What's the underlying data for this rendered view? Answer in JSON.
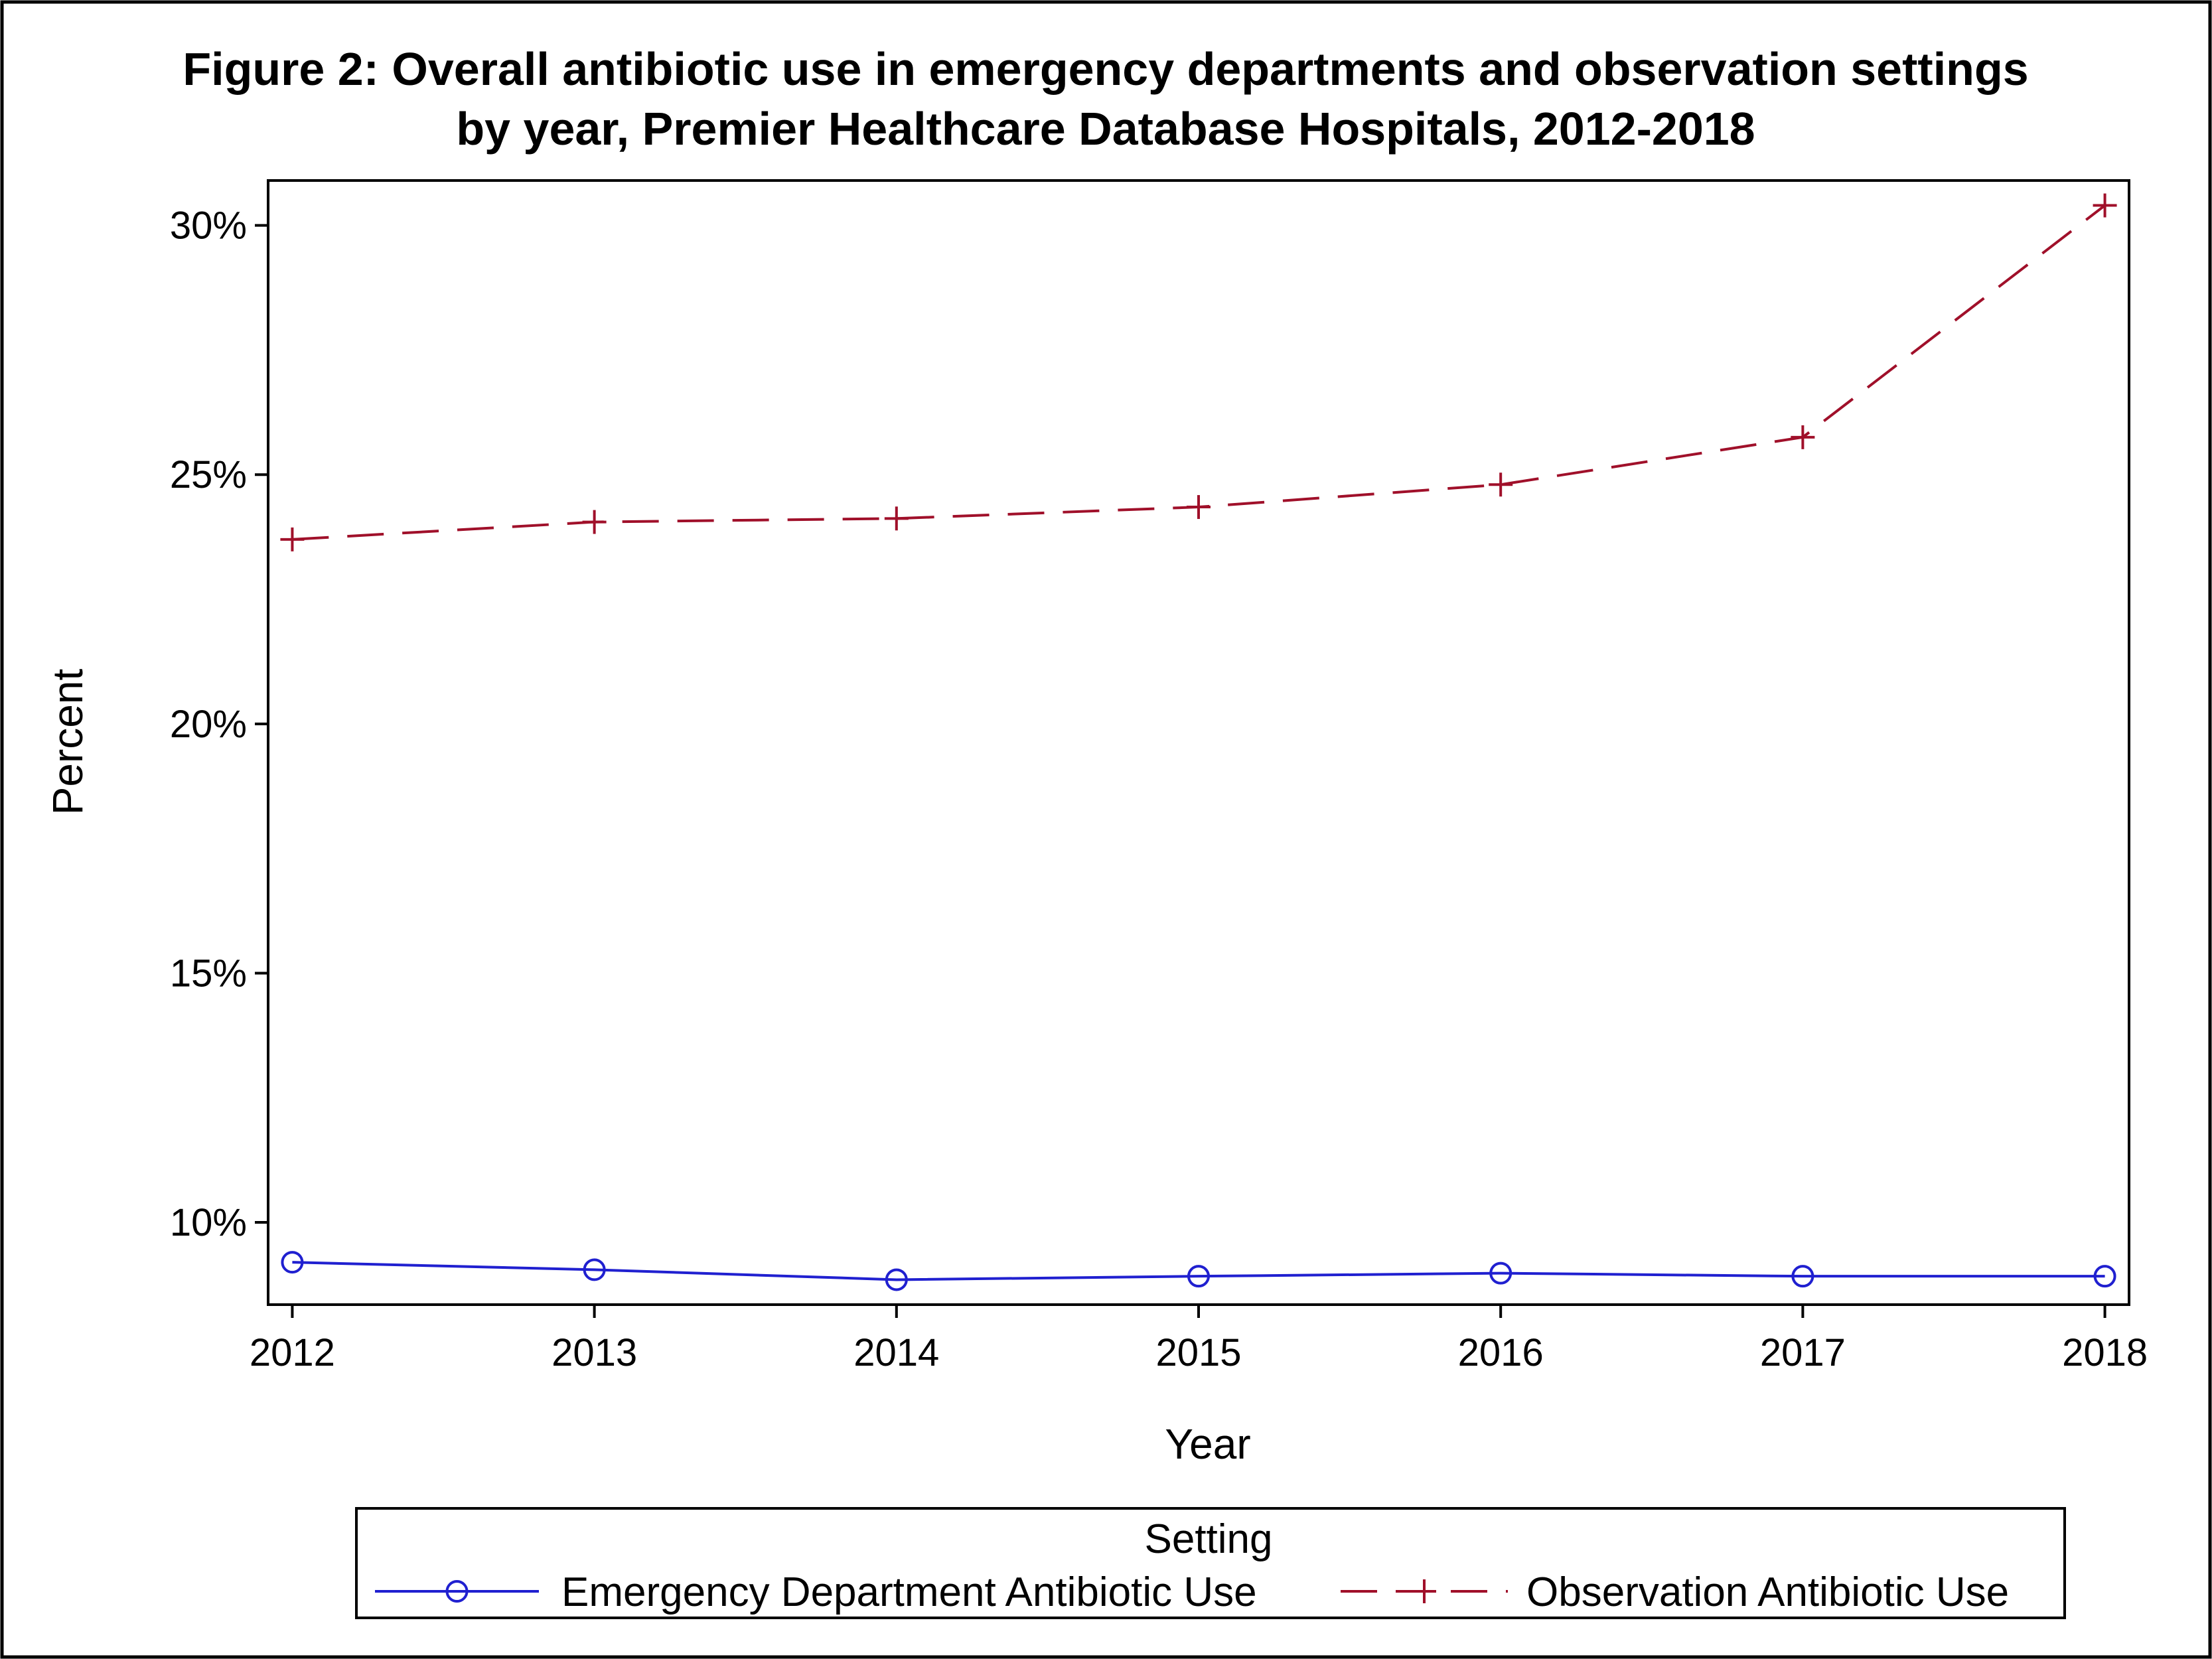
{
  "chart_data": {
    "type": "line",
    "title_line1": "Figure 2: Overall antibiotic use in emergency departments and observation settings",
    "title_line2": "by year, Premier Healthcare Database Hospitals, 2012-2018",
    "xlabel": "Year",
    "ylabel": "Percent",
    "x": [
      "2012",
      "2013",
      "2014",
      "2015",
      "2016",
      "2017",
      "2018"
    ],
    "xlim": [
      2011.92,
      2018.08
    ],
    "ylim": [
      8.35,
      30.9
    ],
    "yticks": [
      {
        "value": 10,
        "label": "10%"
      },
      {
        "value": 15,
        "label": "15%"
      },
      {
        "value": 20,
        "label": "20%"
      },
      {
        "value": 25,
        "label": "25%"
      },
      {
        "value": 30,
        "label": "30%"
      }
    ],
    "grid": false,
    "legend": {
      "title": "Setting",
      "placement": "bottom"
    },
    "series": [
      {
        "name": "Emergency Department Antibiotic Use",
        "values": [
          9.2,
          9.05,
          8.85,
          8.92,
          8.98,
          8.92,
          8.92
        ],
        "color": "#2020d0",
        "marker": "circle",
        "line_style": "solid"
      },
      {
        "name": "Observation Antibiotic Use",
        "values": [
          23.7,
          24.05,
          24.12,
          24.35,
          24.8,
          25.75,
          30.4
        ],
        "color": "#a0102a",
        "marker": "plus",
        "line_style": "dashed"
      }
    ]
  }
}
